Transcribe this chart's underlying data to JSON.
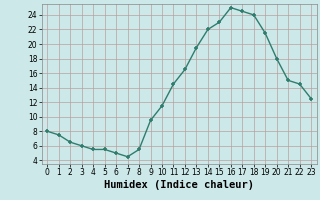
{
  "x": [
    0,
    1,
    2,
    3,
    4,
    5,
    6,
    7,
    8,
    9,
    10,
    11,
    12,
    13,
    14,
    15,
    16,
    17,
    18,
    19,
    20,
    21,
    22,
    23
  ],
  "y": [
    8,
    7.5,
    6.5,
    6,
    5.5,
    5.5,
    5,
    4.5,
    5.5,
    9.5,
    11.5,
    14.5,
    16.5,
    19.5,
    22,
    23,
    25,
    24.5,
    24,
    21.5,
    18,
    15,
    14.5,
    12.5
  ],
  "xlabel": "Humidex (Indice chaleur)",
  "xlim": [
    -0.5,
    23.5
  ],
  "ylim": [
    3.5,
    25.5
  ],
  "yticks": [
    4,
    6,
    8,
    10,
    12,
    14,
    16,
    18,
    20,
    22,
    24
  ],
  "xticks": [
    0,
    1,
    2,
    3,
    4,
    5,
    6,
    7,
    8,
    9,
    10,
    11,
    12,
    13,
    14,
    15,
    16,
    17,
    18,
    19,
    20,
    21,
    22,
    23
  ],
  "line_color": "#2e7d6e",
  "marker_color": "#2e7d6e",
  "bg_color": "#cce8e8",
  "grid_color": "#b8a0a0",
  "xlabel_fontsize": 7.5,
  "tick_fontsize": 5.5
}
